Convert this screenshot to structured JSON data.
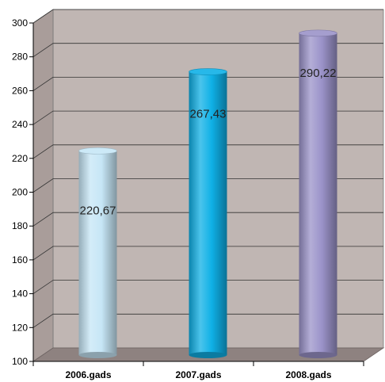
{
  "chart_data": {
    "type": "bar",
    "categories": [
      "2006.gads",
      "2007.gads",
      "2008.gads"
    ],
    "values": [
      220.67,
      267.43,
      290.22
    ],
    "data_labels": [
      "220,67",
      "267,43",
      "290,22"
    ],
    "ylim": [
      100,
      300
    ],
    "yticks": [
      "100",
      "120",
      "140",
      "160",
      "180",
      "200",
      "220",
      "240",
      "260",
      "280",
      "300"
    ],
    "grid": true,
    "style": "3d-cylinder",
    "colors": {
      "wall": "#c0b6b3",
      "floor": "#8e8280",
      "bars": [
        "#c6e6f6",
        "#0fb0e6",
        "#9b93c9"
      ]
    }
  }
}
